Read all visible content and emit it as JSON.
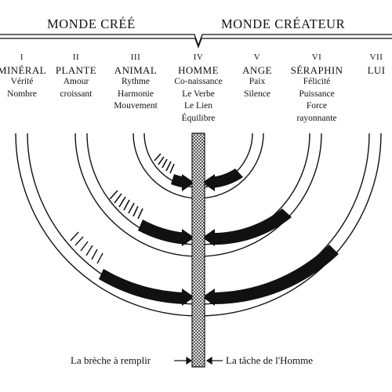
{
  "headings": {
    "left": "MONDE CRÉÉ",
    "right": "MONDE CRÉATEUR"
  },
  "columns": [
    {
      "numeral": "I",
      "name": "MINÉRAL",
      "qualities": [
        "Vérité",
        "Nombre"
      ]
    },
    {
      "numeral": "II",
      "name": "PLANTE",
      "qualities": [
        "Amour",
        "croissant"
      ]
    },
    {
      "numeral": "III",
      "name": "ANIMAL",
      "qualities": [
        "Rythme",
        "Harmonie",
        "Mouvement"
      ]
    },
    {
      "numeral": "IV",
      "name": "HOMME",
      "qualities": [
        "Co-naissance",
        "Le Verbe",
        "Le Lien",
        "Équilibre"
      ]
    },
    {
      "numeral": "V",
      "name": "ANGE",
      "qualities": [
        "Paix",
        "Silence"
      ]
    },
    {
      "numeral": "VI",
      "name": "SÉRAPHIN",
      "qualities": [
        "Félicité",
        "Puissance",
        "Force",
        "rayonnante"
      ]
    },
    {
      "numeral": "VII",
      "name": "LUI",
      "qualities": []
    }
  ],
  "footer": {
    "left": "La brèche à remplir",
    "right": "La tâche de l'Homme"
  },
  "colors": {
    "ink": "#111111",
    "background": "#ffffff"
  }
}
